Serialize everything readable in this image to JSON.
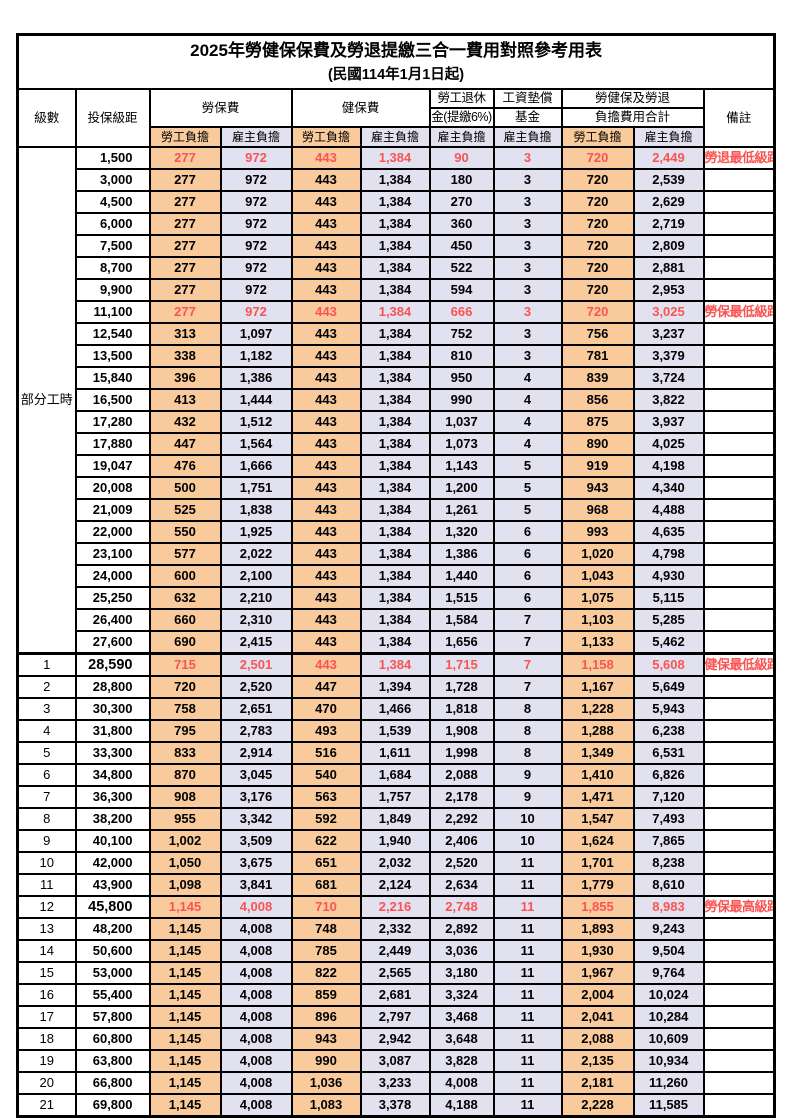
{
  "title": "2025年勞健保保費及勞退提繳三合一費用對照參考用表",
  "subtitle": "(民國114年1月1日起)",
  "header": {
    "level": "級數",
    "bracket": "投保級距",
    "labor_insurance": "勞保費",
    "health_insurance": "健保費",
    "pension_line1": "勞工退休",
    "pension_line2": "金(提繳6%)",
    "wage_fund_line1": "工資墊償",
    "wage_fund_line2": "基金",
    "total_line1": "勞健保及勞退",
    "total_line2": "負擔費用合計",
    "remark": "備註",
    "employee_burden": "勞工負擔",
    "employer_burden": "雇主負擔"
  },
  "colors": {
    "employee_bg": "#F9CA9C",
    "employer_bg": "#E2E1F0",
    "highlight_text": "#FA5452",
    "border": "#000000"
  },
  "part_time_label": "部分工時",
  "part_time_rowspan": 23,
  "rows": [
    {
      "level": "",
      "bracket": "1,500",
      "values": [
        "277",
        "972",
        "443",
        "1,384",
        "90",
        "3",
        "720",
        "2,449"
      ],
      "remark": "勞退最低級距",
      "red": true,
      "bold_bracket": false,
      "thick_top": false
    },
    {
      "level": "",
      "bracket": "3,000",
      "values": [
        "277",
        "972",
        "443",
        "1,384",
        "180",
        "3",
        "720",
        "2,539"
      ],
      "remark": "",
      "red": false,
      "bold_bracket": false,
      "thick_top": false
    },
    {
      "level": "",
      "bracket": "4,500",
      "values": [
        "277",
        "972",
        "443",
        "1,384",
        "270",
        "3",
        "720",
        "2,629"
      ],
      "remark": "",
      "red": false,
      "bold_bracket": false,
      "thick_top": false
    },
    {
      "level": "",
      "bracket": "6,000",
      "values": [
        "277",
        "972",
        "443",
        "1,384",
        "360",
        "3",
        "720",
        "2,719"
      ],
      "remark": "",
      "red": false,
      "bold_bracket": false,
      "thick_top": false
    },
    {
      "level": "",
      "bracket": "7,500",
      "values": [
        "277",
        "972",
        "443",
        "1,384",
        "450",
        "3",
        "720",
        "2,809"
      ],
      "remark": "",
      "red": false,
      "bold_bracket": false,
      "thick_top": false
    },
    {
      "level": "",
      "bracket": "8,700",
      "values": [
        "277",
        "972",
        "443",
        "1,384",
        "522",
        "3",
        "720",
        "2,881"
      ],
      "remark": "",
      "red": false,
      "bold_bracket": false,
      "thick_top": false
    },
    {
      "level": "",
      "bracket": "9,900",
      "values": [
        "277",
        "972",
        "443",
        "1,384",
        "594",
        "3",
        "720",
        "2,953"
      ],
      "remark": "",
      "red": false,
      "bold_bracket": false,
      "thick_top": false
    },
    {
      "level": "",
      "bracket": "11,100",
      "values": [
        "277",
        "972",
        "443",
        "1,384",
        "666",
        "3",
        "720",
        "3,025"
      ],
      "remark": "勞保最低級距",
      "red": true,
      "bold_bracket": false,
      "thick_top": false
    },
    {
      "level": "",
      "bracket": "12,540",
      "values": [
        "313",
        "1,097",
        "443",
        "1,384",
        "752",
        "3",
        "756",
        "3,237"
      ],
      "remark": "",
      "red": false,
      "bold_bracket": false,
      "thick_top": false
    },
    {
      "level": "",
      "bracket": "13,500",
      "values": [
        "338",
        "1,182",
        "443",
        "1,384",
        "810",
        "3",
        "781",
        "3,379"
      ],
      "remark": "",
      "red": false,
      "bold_bracket": false,
      "thick_top": false
    },
    {
      "level": "",
      "bracket": "15,840",
      "values": [
        "396",
        "1,386",
        "443",
        "1,384",
        "950",
        "4",
        "839",
        "3,724"
      ],
      "remark": "",
      "red": false,
      "bold_bracket": false,
      "thick_top": false
    },
    {
      "level": "",
      "bracket": "16,500",
      "values": [
        "413",
        "1,444",
        "443",
        "1,384",
        "990",
        "4",
        "856",
        "3,822"
      ],
      "remark": "",
      "red": false,
      "bold_bracket": false,
      "thick_top": false
    },
    {
      "level": "",
      "bracket": "17,280",
      "values": [
        "432",
        "1,512",
        "443",
        "1,384",
        "1,037",
        "4",
        "875",
        "3,937"
      ],
      "remark": "",
      "red": false,
      "bold_bracket": false,
      "thick_top": false
    },
    {
      "level": "",
      "bracket": "17,880",
      "values": [
        "447",
        "1,564",
        "443",
        "1,384",
        "1,073",
        "4",
        "890",
        "4,025"
      ],
      "remark": "",
      "red": false,
      "bold_bracket": false,
      "thick_top": false
    },
    {
      "level": "",
      "bracket": "19,047",
      "values": [
        "476",
        "1,666",
        "443",
        "1,384",
        "1,143",
        "5",
        "919",
        "4,198"
      ],
      "remark": "",
      "red": false,
      "bold_bracket": false,
      "thick_top": false
    },
    {
      "level": "",
      "bracket": "20,008",
      "values": [
        "500",
        "1,751",
        "443",
        "1,384",
        "1,200",
        "5",
        "943",
        "4,340"
      ],
      "remark": "",
      "red": false,
      "bold_bracket": false,
      "thick_top": false
    },
    {
      "level": "",
      "bracket": "21,009",
      "values": [
        "525",
        "1,838",
        "443",
        "1,384",
        "1,261",
        "5",
        "968",
        "4,488"
      ],
      "remark": "",
      "red": false,
      "bold_bracket": false,
      "thick_top": false
    },
    {
      "level": "",
      "bracket": "22,000",
      "values": [
        "550",
        "1,925",
        "443",
        "1,384",
        "1,320",
        "6",
        "993",
        "4,635"
      ],
      "remark": "",
      "red": false,
      "bold_bracket": false,
      "thick_top": false
    },
    {
      "level": "",
      "bracket": "23,100",
      "values": [
        "577",
        "2,022",
        "443",
        "1,384",
        "1,386",
        "6",
        "1,020",
        "4,798"
      ],
      "remark": "",
      "red": false,
      "bold_bracket": false,
      "thick_top": false
    },
    {
      "level": "",
      "bracket": "24,000",
      "values": [
        "600",
        "2,100",
        "443",
        "1,384",
        "1,440",
        "6",
        "1,043",
        "4,930"
      ],
      "remark": "",
      "red": false,
      "bold_bracket": false,
      "thick_top": false
    },
    {
      "level": "",
      "bracket": "25,250",
      "values": [
        "632",
        "2,210",
        "443",
        "1,384",
        "1,515",
        "6",
        "1,075",
        "5,115"
      ],
      "remark": "",
      "red": false,
      "bold_bracket": false,
      "thick_top": false
    },
    {
      "level": "",
      "bracket": "26,400",
      "values": [
        "660",
        "2,310",
        "443",
        "1,384",
        "1,584",
        "7",
        "1,103",
        "5,285"
      ],
      "remark": "",
      "red": false,
      "bold_bracket": false,
      "thick_top": false
    },
    {
      "level": "",
      "bracket": "27,600",
      "values": [
        "690",
        "2,415",
        "443",
        "1,384",
        "1,656",
        "7",
        "1,133",
        "5,462"
      ],
      "remark": "",
      "red": false,
      "bold_bracket": false,
      "thick_top": false
    },
    {
      "level": "1",
      "bracket": "28,590",
      "values": [
        "715",
        "2,501",
        "443",
        "1,384",
        "1,715",
        "7",
        "1,158",
        "5,608"
      ],
      "remark": "健保最低級距",
      "red": true,
      "bold_bracket": true,
      "thick_top": true
    },
    {
      "level": "2",
      "bracket": "28,800",
      "values": [
        "720",
        "2,520",
        "447",
        "1,394",
        "1,728",
        "7",
        "1,167",
        "5,649"
      ],
      "remark": "",
      "red": false,
      "bold_bracket": false,
      "thick_top": false
    },
    {
      "level": "3",
      "bracket": "30,300",
      "values": [
        "758",
        "2,651",
        "470",
        "1,466",
        "1,818",
        "8",
        "1,228",
        "5,943"
      ],
      "remark": "",
      "red": false,
      "bold_bracket": false,
      "thick_top": false
    },
    {
      "level": "4",
      "bracket": "31,800",
      "values": [
        "795",
        "2,783",
        "493",
        "1,539",
        "1,908",
        "8",
        "1,288",
        "6,238"
      ],
      "remark": "",
      "red": false,
      "bold_bracket": false,
      "thick_top": false
    },
    {
      "level": "5",
      "bracket": "33,300",
      "values": [
        "833",
        "2,914",
        "516",
        "1,611",
        "1,998",
        "8",
        "1,349",
        "6,531"
      ],
      "remark": "",
      "red": false,
      "bold_bracket": false,
      "thick_top": false
    },
    {
      "level": "6",
      "bracket": "34,800",
      "values": [
        "870",
        "3,045",
        "540",
        "1,684",
        "2,088",
        "9",
        "1,410",
        "6,826"
      ],
      "remark": "",
      "red": false,
      "bold_bracket": false,
      "thick_top": false
    },
    {
      "level": "7",
      "bracket": "36,300",
      "values": [
        "908",
        "3,176",
        "563",
        "1,757",
        "2,178",
        "9",
        "1,471",
        "7,120"
      ],
      "remark": "",
      "red": false,
      "bold_bracket": false,
      "thick_top": false
    },
    {
      "level": "8",
      "bracket": "38,200",
      "values": [
        "955",
        "3,342",
        "592",
        "1,849",
        "2,292",
        "10",
        "1,547",
        "7,493"
      ],
      "remark": "",
      "red": false,
      "bold_bracket": false,
      "thick_top": false
    },
    {
      "level": "9",
      "bracket": "40,100",
      "values": [
        "1,002",
        "3,509",
        "622",
        "1,940",
        "2,406",
        "10",
        "1,624",
        "7,865"
      ],
      "remark": "",
      "red": false,
      "bold_bracket": false,
      "thick_top": false
    },
    {
      "level": "10",
      "bracket": "42,000",
      "values": [
        "1,050",
        "3,675",
        "651",
        "2,032",
        "2,520",
        "11",
        "1,701",
        "8,238"
      ],
      "remark": "",
      "red": false,
      "bold_bracket": false,
      "thick_top": false
    },
    {
      "level": "11",
      "bracket": "43,900",
      "values": [
        "1,098",
        "3,841",
        "681",
        "2,124",
        "2,634",
        "11",
        "1,779",
        "8,610"
      ],
      "remark": "",
      "red": false,
      "bold_bracket": false,
      "thick_top": false
    },
    {
      "level": "12",
      "bracket": "45,800",
      "values": [
        "1,145",
        "4,008",
        "710",
        "2,216",
        "2,748",
        "11",
        "1,855",
        "8,983"
      ],
      "remark": "勞保最高級距",
      "red": true,
      "bold_bracket": true,
      "thick_top": false
    },
    {
      "level": "13",
      "bracket": "48,200",
      "values": [
        "1,145",
        "4,008",
        "748",
        "2,332",
        "2,892",
        "11",
        "1,893",
        "9,243"
      ],
      "remark": "",
      "red": false,
      "bold_bracket": false,
      "thick_top": false
    },
    {
      "level": "14",
      "bracket": "50,600",
      "values": [
        "1,145",
        "4,008",
        "785",
        "2,449",
        "3,036",
        "11",
        "1,930",
        "9,504"
      ],
      "remark": "",
      "red": false,
      "bold_bracket": false,
      "thick_top": false
    },
    {
      "level": "15",
      "bracket": "53,000",
      "values": [
        "1,145",
        "4,008",
        "822",
        "2,565",
        "3,180",
        "11",
        "1,967",
        "9,764"
      ],
      "remark": "",
      "red": false,
      "bold_bracket": false,
      "thick_top": false
    },
    {
      "level": "16",
      "bracket": "55,400",
      "values": [
        "1,145",
        "4,008",
        "859",
        "2,681",
        "3,324",
        "11",
        "2,004",
        "10,024"
      ],
      "remark": "",
      "red": false,
      "bold_bracket": false,
      "thick_top": false
    },
    {
      "level": "17",
      "bracket": "57,800",
      "values": [
        "1,145",
        "4,008",
        "896",
        "2,797",
        "3,468",
        "11",
        "2,041",
        "10,284"
      ],
      "remark": "",
      "red": false,
      "bold_bracket": false,
      "thick_top": false
    },
    {
      "level": "18",
      "bracket": "60,800",
      "values": [
        "1,145",
        "4,008",
        "943",
        "2,942",
        "3,648",
        "11",
        "2,088",
        "10,609"
      ],
      "remark": "",
      "red": false,
      "bold_bracket": false,
      "thick_top": false
    },
    {
      "level": "19",
      "bracket": "63,800",
      "values": [
        "1,145",
        "4,008",
        "990",
        "3,087",
        "3,828",
        "11",
        "2,135",
        "10,934"
      ],
      "remark": "",
      "red": false,
      "bold_bracket": false,
      "thick_top": false
    },
    {
      "level": "20",
      "bracket": "66,800",
      "values": [
        "1,145",
        "4,008",
        "1,036",
        "3,233",
        "4,008",
        "11",
        "2,181",
        "11,260"
      ],
      "remark": "",
      "red": false,
      "bold_bracket": false,
      "thick_top": false
    },
    {
      "level": "21",
      "bracket": "69,800",
      "values": [
        "1,145",
        "4,008",
        "1,083",
        "3,378",
        "4,188",
        "11",
        "2,228",
        "11,585"
      ],
      "remark": "",
      "red": false,
      "bold_bracket": false,
      "thick_top": false
    }
  ]
}
